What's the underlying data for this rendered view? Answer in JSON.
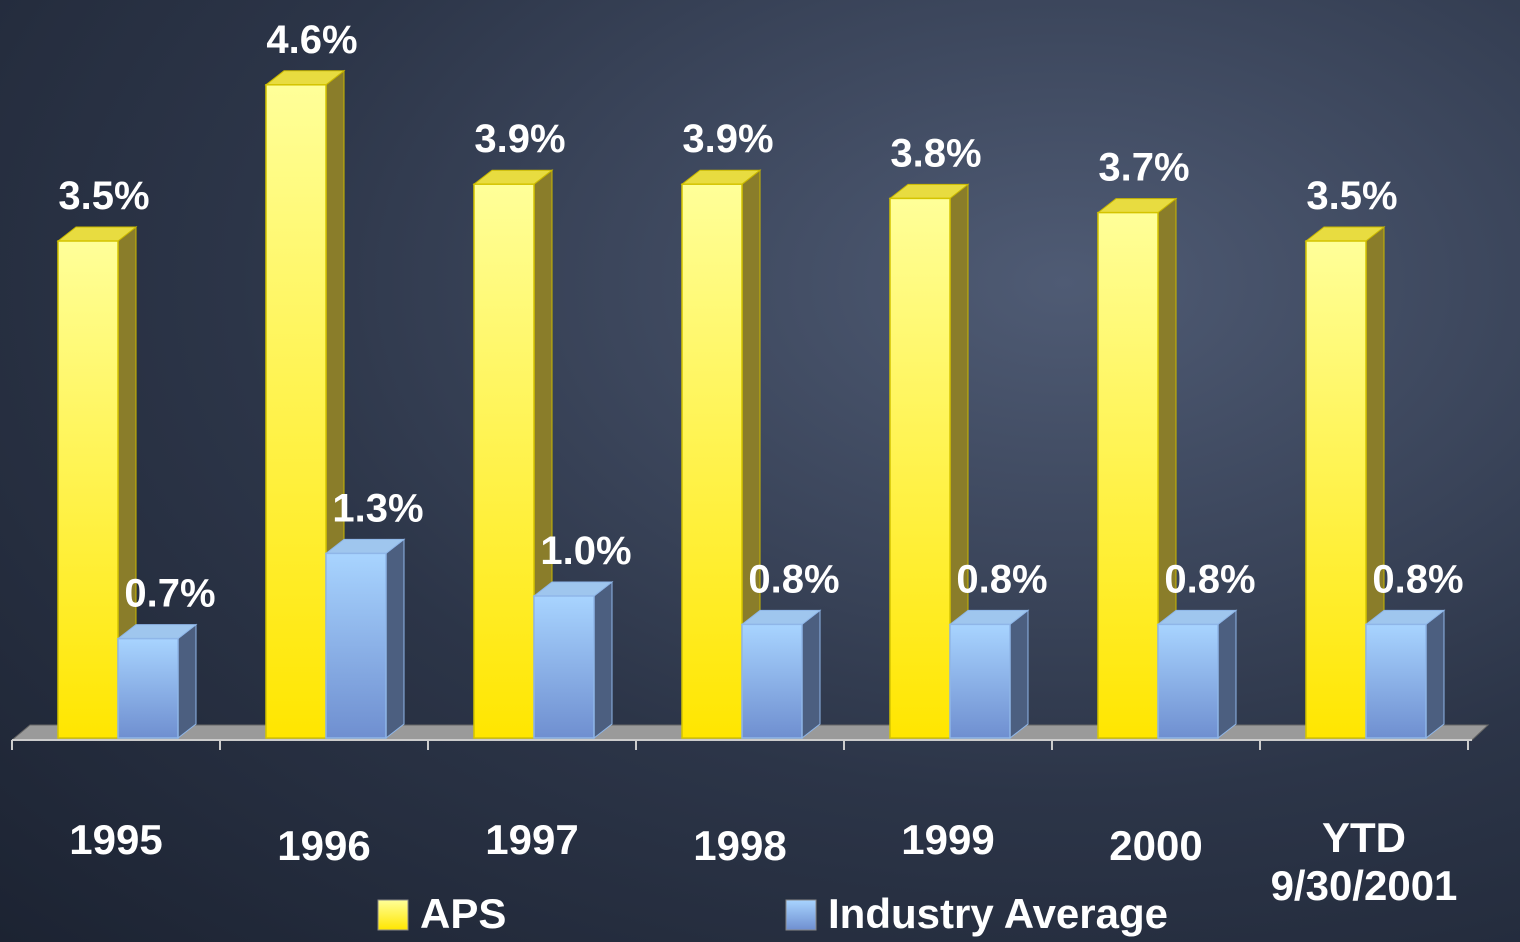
{
  "chart_data": {
    "type": "bar3d",
    "categories": [
      "1995",
      "1996",
      "1997",
      "1998",
      "1999",
      "2000",
      "YTD\n9/30/2001"
    ],
    "series": [
      {
        "name": "APS",
        "color": "#ffee00",
        "values": [
          3.5,
          4.6,
          3.9,
          3.9,
          3.8,
          3.7,
          3.5
        ],
        "value_labels": [
          "3.5%",
          "4.6%",
          "3.9%",
          "3.9%",
          "3.8%",
          "3.7%",
          "3.5%"
        ]
      },
      {
        "name": "Industry Average",
        "color": "#99ccff",
        "values": [
          0.7,
          1.3,
          1.0,
          0.8,
          0.8,
          0.8,
          0.8
        ],
        "value_labels": [
          "0.7%",
          "1.3%",
          "1.0%",
          "0.8%",
          "0.8%",
          "0.8%",
          "0.8%"
        ]
      }
    ],
    "ylim": [
      0,
      5
    ],
    "legend": "bottom"
  }
}
